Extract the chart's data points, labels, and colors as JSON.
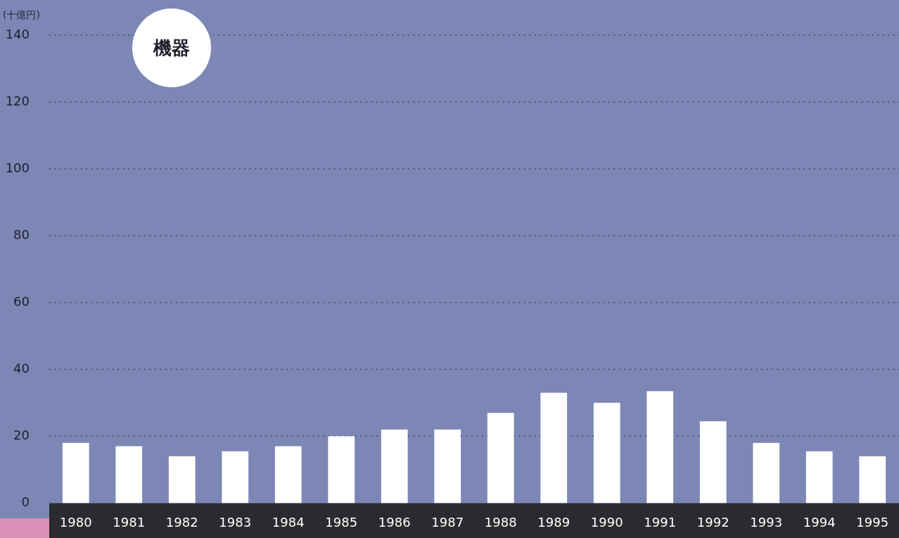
{
  "chart_data": {
    "type": "bar",
    "title": "機器",
    "ylabel": "(十億円)",
    "categories": [
      "1980",
      "1981",
      "1982",
      "1983",
      "1984",
      "1985",
      "1986",
      "1987",
      "1988",
      "1989",
      "1990",
      "1991",
      "1992",
      "1993",
      "1994",
      "1995"
    ],
    "values": [
      18,
      17,
      14,
      15.5,
      17,
      20,
      22,
      22,
      27,
      33,
      30,
      33.5,
      24.5,
      18,
      15.5,
      14
    ],
    "color": "#ffffff",
    "ylim": [
      0,
      140
    ],
    "yticks": [
      0,
      20,
      40,
      60,
      80,
      100,
      120,
      140
    ],
    "grid": "y",
    "legend": false
  }
}
